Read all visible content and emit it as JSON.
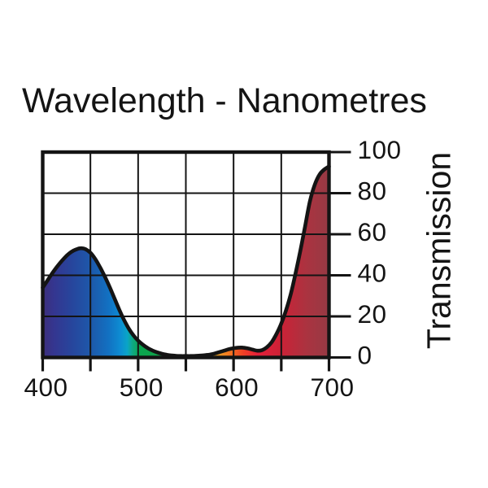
{
  "title": "Wavelength - Nanometres",
  "chart_data": {
    "type": "area",
    "title": "Wavelength - Nanometres",
    "xlabel": "Wavelength - Nanometres",
    "ylabel": "Transmission",
    "xlim": [
      400,
      700
    ],
    "ylim": [
      0,
      100
    ],
    "grid": "on",
    "x_grid_step": 50,
    "y_grid_step": 20,
    "x_tick_labels": [
      {
        "value": 400,
        "label": "400"
      },
      {
        "value": 500,
        "label": "500"
      },
      {
        "value": 600,
        "label": "600"
      },
      {
        "value": 700,
        "label": "700"
      }
    ],
    "x_ticks": [
      400,
      450,
      500,
      550,
      600,
      650,
      700
    ],
    "y_tick_labels": [
      {
        "value": 0,
        "label": "0"
      },
      {
        "value": 20,
        "label": "20"
      },
      {
        "value": 40,
        "label": "40"
      },
      {
        "value": 60,
        "label": "60"
      },
      {
        "value": 80,
        "label": "80"
      },
      {
        "value": 100,
        "label": "100"
      }
    ],
    "frame_color": "#141414",
    "curve_color": "#141414",
    "series": [
      {
        "name": "filter-transmission-percent",
        "points": [
          [
            400,
            34
          ],
          [
            405,
            37.5
          ],
          [
            410,
            41
          ],
          [
            415,
            44.2
          ],
          [
            420,
            47
          ],
          [
            425,
            49.5
          ],
          [
            430,
            51.4
          ],
          [
            435,
            52.6
          ],
          [
            440,
            53.2
          ],
          [
            445,
            52.7
          ],
          [
            450,
            51
          ],
          [
            455,
            48
          ],
          [
            460,
            44
          ],
          [
            465,
            39.5
          ],
          [
            470,
            34.5
          ],
          [
            475,
            29
          ],
          [
            480,
            23.5
          ],
          [
            485,
            18.5
          ],
          [
            490,
            14.2
          ],
          [
            495,
            10.8
          ],
          [
            500,
            8.2
          ],
          [
            505,
            6.2
          ],
          [
            510,
            4.6
          ],
          [
            515,
            3.4
          ],
          [
            520,
            2.5
          ],
          [
            525,
            1.8
          ],
          [
            530,
            1.3
          ],
          [
            535,
            1.0
          ],
          [
            540,
            0.8
          ],
          [
            545,
            0.7
          ],
          [
            550,
            0.7
          ],
          [
            555,
            0.7
          ],
          [
            560,
            0.8
          ],
          [
            565,
            0.9
          ],
          [
            570,
            1.1
          ],
          [
            575,
            1.4
          ],
          [
            580,
            1.9
          ],
          [
            585,
            2.6
          ],
          [
            590,
            3.3
          ],
          [
            595,
            4.0
          ],
          [
            600,
            4.5
          ],
          [
            605,
            4.8
          ],
          [
            610,
            4.8
          ],
          [
            615,
            4.4
          ],
          [
            620,
            3.8
          ],
          [
            625,
            3.3
          ],
          [
            630,
            3.6
          ],
          [
            635,
            5.0
          ],
          [
            640,
            7.5
          ],
          [
            645,
            11.5
          ],
          [
            650,
            16.5
          ],
          [
            655,
            23
          ],
          [
            660,
            31
          ],
          [
            665,
            41
          ],
          [
            670,
            52
          ],
          [
            675,
            64
          ],
          [
            680,
            76
          ],
          [
            685,
            84
          ],
          [
            690,
            89
          ],
          [
            695,
            91.5
          ],
          [
            700,
            93
          ]
        ]
      }
    ],
    "spectrum_gradient": [
      {
        "offset": 0.0,
        "color": "#3d2e7b"
      },
      {
        "offset": 0.04,
        "color": "#343690"
      },
      {
        "offset": 0.1,
        "color": "#27459c"
      },
      {
        "offset": 0.17,
        "color": "#1d59ab"
      },
      {
        "offset": 0.23,
        "color": "#1271c2"
      },
      {
        "offset": 0.27,
        "color": "#0d8cd2"
      },
      {
        "offset": 0.295,
        "color": "#0aa4c8"
      },
      {
        "offset": 0.315,
        "color": "#0fa980"
      },
      {
        "offset": 0.34,
        "color": "#0aa54e"
      },
      {
        "offset": 0.45,
        "color": "#11a148"
      },
      {
        "offset": 0.55,
        "color": "#7aa93a"
      },
      {
        "offset": 0.6,
        "color": "#e0a425"
      },
      {
        "offset": 0.645,
        "color": "#f57e20"
      },
      {
        "offset": 0.7,
        "color": "#ef4025"
      },
      {
        "offset": 0.75,
        "color": "#e5203a"
      },
      {
        "offset": 0.83,
        "color": "#cc2136"
      },
      {
        "offset": 0.92,
        "color": "#ab3340"
      },
      {
        "offset": 1.0,
        "color": "#963a44"
      }
    ]
  }
}
